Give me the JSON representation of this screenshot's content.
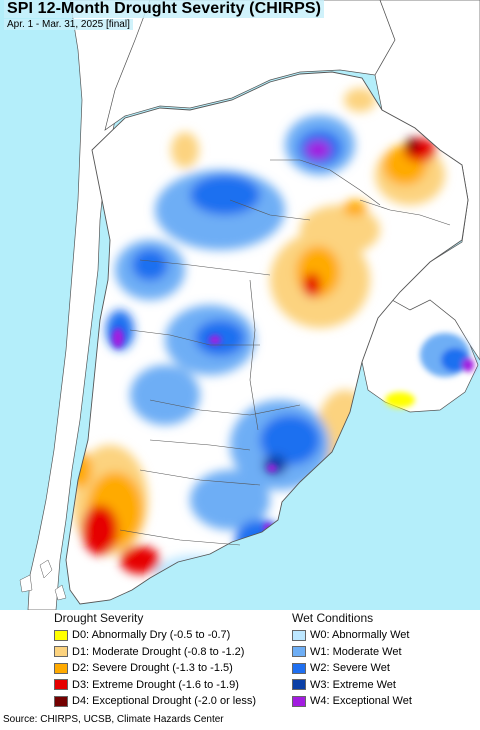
{
  "title": "SPI 12-Month Drought Severity (CHIRPS)",
  "subtitle": "Apr. 1 - Mar. 31, 2025 [final]",
  "colors": {
    "ocean": "#b4eefa",
    "land_outside": "#ffffff",
    "border": "#555555"
  },
  "legend": {
    "drought": {
      "heading": "Drought Severity",
      "items": [
        {
          "label": "D0: Abnormally Dry (-0.5 to -0.7)",
          "color": "#ffff00"
        },
        {
          "label": "D1: Moderate Drought (-0.8 to -1.2)",
          "color": "#fcd37f"
        },
        {
          "label": "D2: Severe Drought (-1.3 to -1.5)",
          "color": "#ffaa00"
        },
        {
          "label": "D3: Extreme Drought (-1.6 to -1.9)",
          "color": "#e60000"
        },
        {
          "label": "D4: Exceptional Drought (-2.0 or less)",
          "color": "#730000"
        }
      ]
    },
    "wet": {
      "heading": "Wet Conditions",
      "items": [
        {
          "label": "W0: Abnormally Wet",
          "color": "#bde7ff"
        },
        {
          "label": "W1: Moderate Wet",
          "color": "#6eaef5"
        },
        {
          "label": "W2: Severe Wet",
          "color": "#1f6ff0"
        },
        {
          "label": "W3: Extreme Wet",
          "color": "#0a3fa6"
        },
        {
          "label": "W4: Exceptional Wet",
          "color": "#a21ce0"
        }
      ]
    }
  },
  "source": "Source: CHIRPS, UCSB, Climate Hazards Center"
}
